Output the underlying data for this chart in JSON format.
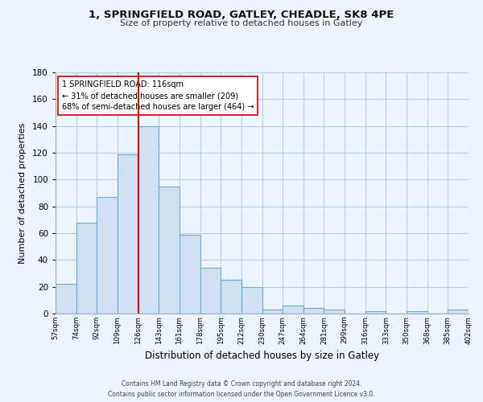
{
  "title1": "1, SPRINGFIELD ROAD, GATLEY, CHEADLE, SK8 4PE",
  "title2": "Size of property relative to detached houses in Gatley",
  "xlabel": "Distribution of detached houses by size in Gatley",
  "ylabel": "Number of detached properties",
  "bar_labels": [
    "57sqm",
    "74sqm",
    "92sqm",
    "109sqm",
    "126sqm",
    "143sqm",
    "161sqm",
    "178sqm",
    "195sqm",
    "212sqm",
    "230sqm",
    "247sqm",
    "264sqm",
    "281sqm",
    "299sqm",
    "316sqm",
    "333sqm",
    "350sqm",
    "368sqm",
    "385sqm",
    "402sqm"
  ],
  "bar_values": [
    22,
    68,
    87,
    119,
    140,
    95,
    59,
    34,
    25,
    20,
    3,
    6,
    4,
    3,
    0,
    2,
    0,
    2,
    0,
    3
  ],
  "bar_color": "#cfe0f3",
  "bar_edge_color": "#6aaad4",
  "property_line_color": "#cc0000",
  "annotation_text": "1 SPRINGFIELD ROAD: 116sqm\n← 31% of detached houses are smaller (209)\n68% of semi-detached houses are larger (464) →",
  "annotation_box_color": "#ffffff",
  "annotation_box_edge": "#cc0000",
  "ylim": [
    0,
    180
  ],
  "yticks": [
    0,
    20,
    40,
    60,
    80,
    100,
    120,
    140,
    160,
    180
  ],
  "footer1": "Contains HM Land Registry data © Crown copyright and database right 2024.",
  "footer2": "Contains public sector information licensed under the Open Government Licence v3.0.",
  "bg_color": "#eef4fb",
  "plot_bg_color": "#eef4fb",
  "grid_color": "#b8cfe8"
}
